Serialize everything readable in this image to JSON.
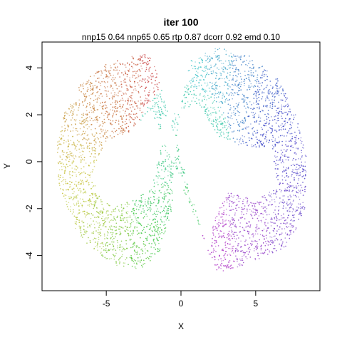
{
  "chart_data": {
    "type": "scatter",
    "title": "iter 100",
    "subtitle": "nnp15 0.64 nnp65 0.65 rtp 0.87 dcorr 0.92 emd 0.10",
    "xlabel": "X",
    "ylabel": "Y",
    "xlim": [
      -9.3,
      9.3
    ],
    "ylim": [
      -5.5,
      5.1
    ],
    "x_ticks": [
      -5,
      0,
      5
    ],
    "y_ticks": [
      -4,
      -2,
      0,
      2,
      4
    ],
    "grid": false,
    "legend": "none",
    "point_color": "rainbow hue gradient along the curve (red -> orange -> yellow-green -> green -> cyan -> blue -> purple)",
    "n_points_approx": 7000,
    "shape_outline": [
      {
        "x": -2.0,
        "y": 4.6,
        "hue": 0
      },
      {
        "x": -3.5,
        "y": 4.5,
        "hue": 12
      },
      {
        "x": -5.2,
        "y": 4.1,
        "hue": 22
      },
      {
        "x": -6.7,
        "y": 3.3,
        "hue": 30
      },
      {
        "x": -7.8,
        "y": 2.1,
        "hue": 40
      },
      {
        "x": -8.3,
        "y": 0.7,
        "hue": 50
      },
      {
        "x": -8.2,
        "y": -0.8,
        "hue": 58
      },
      {
        "x": -7.6,
        "y": -2.4,
        "hue": 66
      },
      {
        "x": -6.2,
        "y": -3.6,
        "hue": 78
      },
      {
        "x": -4.5,
        "y": -4.4,
        "hue": 92
      },
      {
        "x": -2.6,
        "y": -4.6,
        "hue": 108
      },
      {
        "x": -1.3,
        "y": -3.7,
        "hue": 122
      },
      {
        "x": -0.6,
        "y": -2.0,
        "hue": 135
      },
      {
        "x": -0.5,
        "y": 0.0,
        "hue": 150
      },
      {
        "x": 0.0,
        "y": 2.4,
        "hue": 168
      },
      {
        "x": 0.6,
        "y": 4.3,
        "hue": 182
      },
      {
        "x": 2.4,
        "y": 4.9,
        "hue": 195
      },
      {
        "x": 4.6,
        "y": 4.5,
        "hue": 212
      },
      {
        "x": 6.4,
        "y": 3.6,
        "hue": 226
      },
      {
        "x": 7.6,
        "y": 2.2,
        "hue": 236
      },
      {
        "x": 8.4,
        "y": 0.2,
        "hue": 245
      },
      {
        "x": 8.3,
        "y": -2.0,
        "hue": 255
      },
      {
        "x": 7.2,
        "y": -3.6,
        "hue": 266
      },
      {
        "x": 5.0,
        "y": -4.2,
        "hue": 278
      },
      {
        "x": 2.5,
        "y": -4.8,
        "hue": 290
      }
    ],
    "shape_inner": [
      {
        "x": -2.0,
        "y": 2.2
      },
      {
        "x": -3.5,
        "y": 1.2
      },
      {
        "x": -5.0,
        "y": 0.9
      },
      {
        "x": -6.0,
        "y": -0.6
      },
      {
        "x": -5.2,
        "y": -1.8
      },
      {
        "x": -3.5,
        "y": -1.7
      },
      {
        "x": -2.0,
        "y": -1.2
      },
      {
        "x": -1.4,
        "y": 0.4
      },
      {
        "x": -1.3,
        "y": 1.8
      },
      {
        "x": 1.2,
        "y": 2.5
      },
      {
        "x": 2.5,
        "y": 1.0
      },
      {
        "x": 4.3,
        "y": 0.6
      },
      {
        "x": 6.0,
        "y": 0.6
      },
      {
        "x": 6.5,
        "y": -1.0
      },
      {
        "x": 5.2,
        "y": -1.6
      },
      {
        "x": 3.2,
        "y": -1.3
      },
      {
        "x": 2.2,
        "y": -2.4
      },
      {
        "x": 1.9,
        "y": -4.0
      }
    ]
  }
}
